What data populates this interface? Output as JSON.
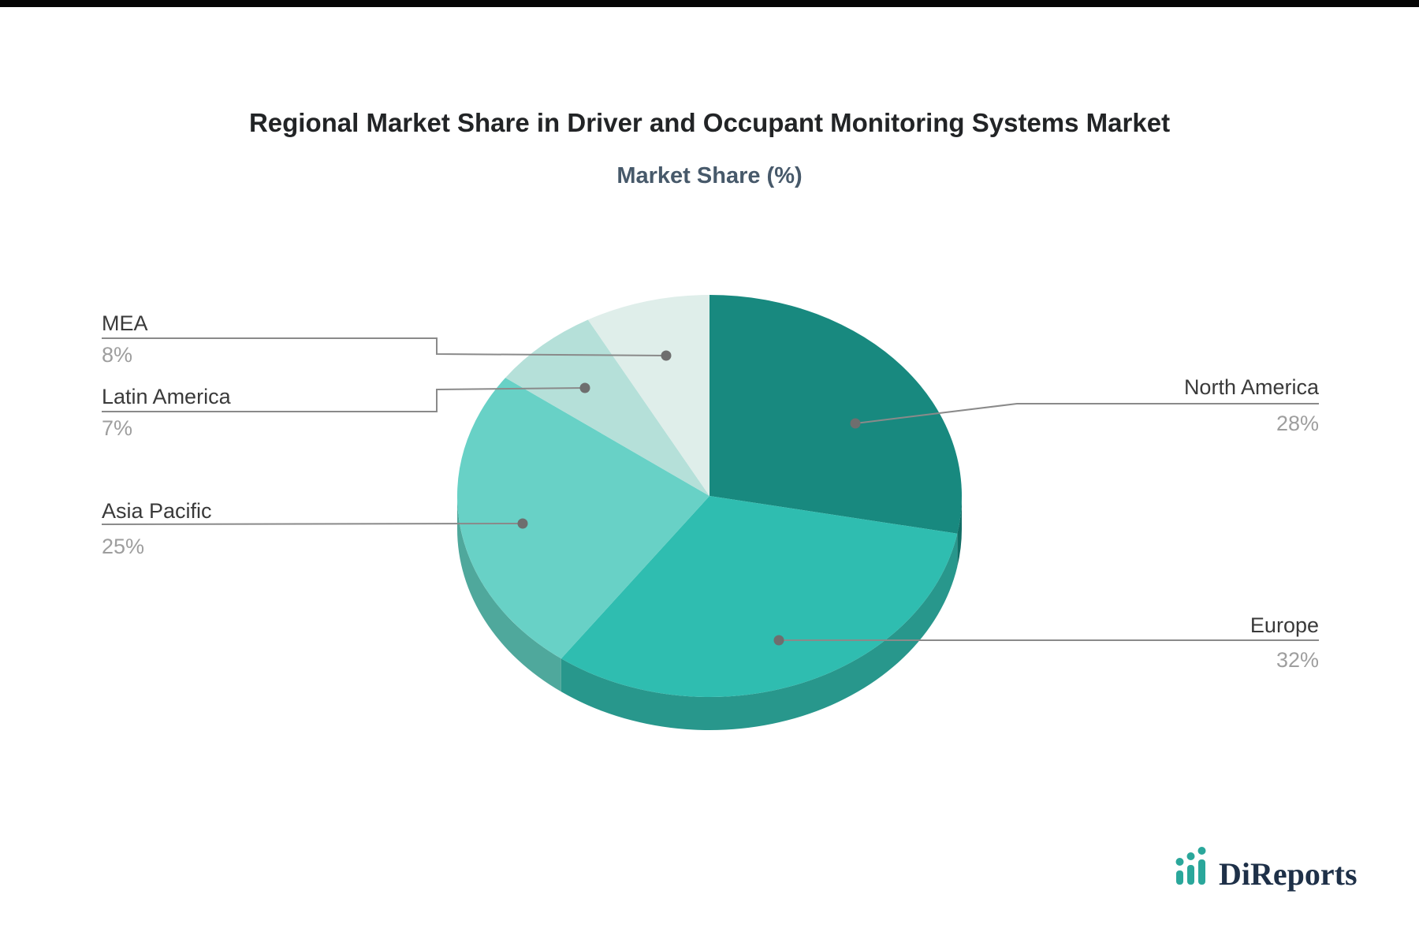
{
  "page": {
    "background": "#ffffff",
    "top_bar_color": "#060606"
  },
  "header": {
    "title": "Regional Market Share in Driver and Occupant Monitoring Systems Market",
    "subtitle": "Market Share (%)"
  },
  "chart_data": {
    "type": "pie",
    "style": "3d",
    "title": "Regional Market Share in Driver and Occupant Monitoring Systems Market",
    "subtitle": "Market Share (%)",
    "unit": "%",
    "rotation": "clockwise-from-top",
    "labels": [
      "North America",
      "Europe",
      "Asia Pacific",
      "Latin America",
      "MEA"
    ],
    "values": [
      28,
      32,
      25,
      7,
      8
    ],
    "value_labels": [
      "28%",
      "32%",
      "25%",
      "7%",
      "8%"
    ],
    "colors": [
      "#18897f",
      "#2fbdb0",
      "#68d1c6",
      "#b5e0d9",
      "#dfeeea"
    ],
    "side_colors": [
      "#126e66",
      "#28978c",
      "#4fa89c",
      "#8fc4ba",
      "#b7d6cf"
    ],
    "leader_line_color": "#8a8a8a",
    "label_color": "#3a3a3a",
    "value_color": "#9e9e9e",
    "legend_position": "callouts"
  },
  "logo": {
    "name": "DiReports",
    "icon": "bar-chart-icon",
    "text_color": "#1e3048",
    "icon_color": "#2aa79b"
  }
}
